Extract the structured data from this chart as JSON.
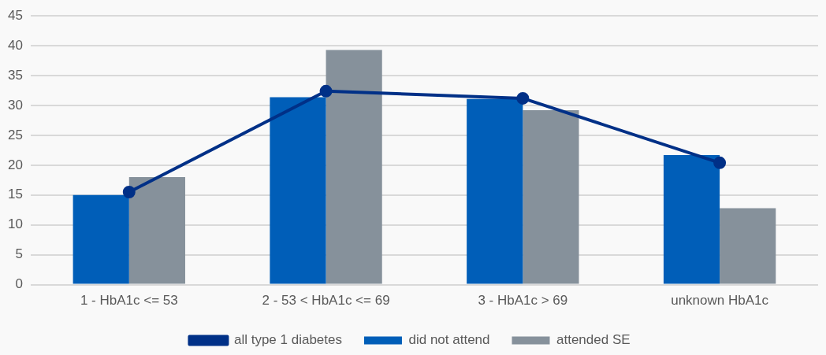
{
  "chart_data": {
    "type": "bar",
    "categories": [
      "1 - HbA1c <= 53",
      "2 - 53 < HbA1c <= 69",
      "3 - HbA1c > 69",
      "unknown HbA1c"
    ],
    "series": [
      {
        "name": "did not attend",
        "color": "#005eb8",
        "values": [
          15.0,
          31.4,
          31.1,
          21.7
        ]
      },
      {
        "name": "attended SE",
        "color": "#86919b",
        "values": [
          18.0,
          39.3,
          29.2,
          12.8
        ]
      },
      {
        "name": "all type 1 diabetes",
        "type": "line",
        "color": "#003087",
        "values": [
          15.5,
          32.4,
          31.2,
          20.4
        ]
      }
    ],
    "ylim": [
      0,
      45
    ],
    "yticks": [
      0,
      5,
      10,
      15,
      20,
      25,
      30,
      35,
      40,
      45
    ],
    "grid": "y",
    "legend": "bottom",
    "marker": "circle",
    "line_style": "solid"
  }
}
